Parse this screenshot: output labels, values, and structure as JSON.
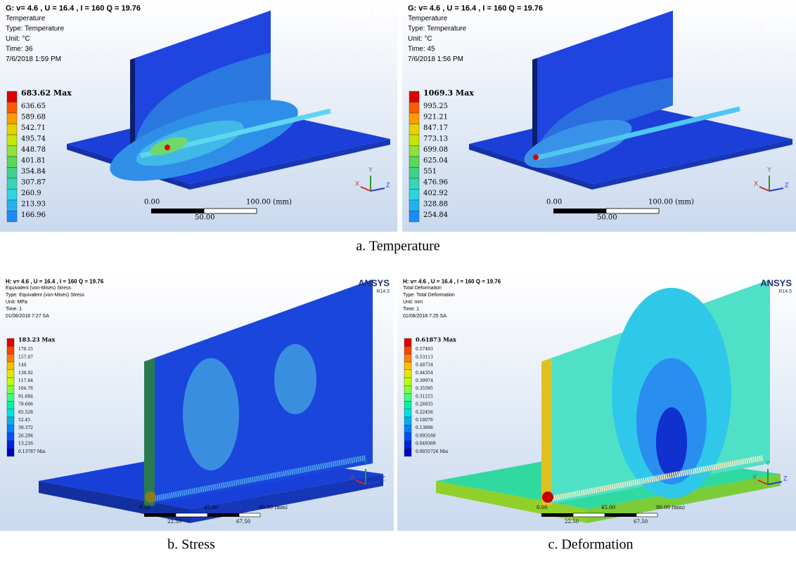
{
  "panels": [
    {
      "header": [
        "G: v= 4.6 , U = 16.4 , I = 160 Q = 19.76",
        "Temperature",
        "Type: Temperature",
        "Unit: °C",
        "Time: 36",
        "7/6/2018 1:59 PM"
      ],
      "legend": [
        "683.62 Max",
        "636.65",
        "589.68",
        "542.71",
        "495.74",
        "448.78",
        "401.81",
        "354.84",
        "307.87",
        "260.9",
        "213.93",
        "166.96"
      ],
      "logo": "ANSYS",
      "version": "R15.0",
      "scale": [
        "0.00",
        "100.00 (mm)",
        "50.00"
      ]
    },
    {
      "header": [
        "G: v= 4.6 , U = 16.4 , I = 160 Q = 19.76",
        "Temperature",
        "Type: Temperature",
        "Unit: °C",
        "Time: 45",
        "7/6/2018 1:56 PM"
      ],
      "legend": [
        "1069.3 Max",
        "995.25",
        "921.21",
        "847.17",
        "773.13",
        "699.08",
        "625.04",
        "551",
        "476.96",
        "402.92",
        "328.88",
        "254.84"
      ],
      "logo": "ANSYS",
      "version": "R15.0",
      "scale": [
        "0.00",
        "100.00 (mm)",
        "50.00"
      ]
    },
    {
      "header": [
        "H: v= 4.6 , U = 16.4 , I = 160 Q = 19.76",
        "Equivalent (von-Mises) Stress",
        "Type: Equivalent (von-Mises) Stress",
        "Unit: MPa",
        "Time: 1",
        "01/06/2018 7:27 SA"
      ],
      "legend": [
        "183.23 Max",
        "170.15",
        "157.07",
        "144",
        "130.92",
        "117.84",
        "104.76",
        "91.684",
        "78.606",
        "65.528",
        "52.45",
        "39.372",
        "26.294",
        "13.216",
        "0.13787 Min"
      ],
      "logo": "ANSYS",
      "version": "R14.5",
      "scale": [
        "0.00",
        "45.00",
        "90.00 (mm)",
        "22.50",
        "67.50"
      ]
    },
    {
      "header": [
        "H: v= 4.6 , U = 16.4 , I = 160 Q = 19.76",
        "Total Deformation",
        "Type: Total Deformation",
        "Unit: mm",
        "Time: 1",
        "01/06/2018 7:25 SA"
      ],
      "legend": [
        "0.61873 Max",
        "0.57493",
        "0.53113",
        "0.48734",
        "0.44354",
        "0.39974",
        "0.35595",
        "0.31215",
        "0.26835",
        "0.22456",
        "0.18076",
        "0.13696",
        "0.093166",
        "0.049369",
        "0.0055726 Min"
      ],
      "logo": "ANSYS",
      "version": "R14.5",
      "scale": [
        "0.00",
        "45.00",
        "90.00 (mm)",
        "22.50",
        "67.50"
      ]
    }
  ],
  "triad": [
    "X",
    "Y",
    "Z"
  ],
  "captions": [
    "a. Temperature",
    "b. Stress",
    "c. Deformation"
  ]
}
